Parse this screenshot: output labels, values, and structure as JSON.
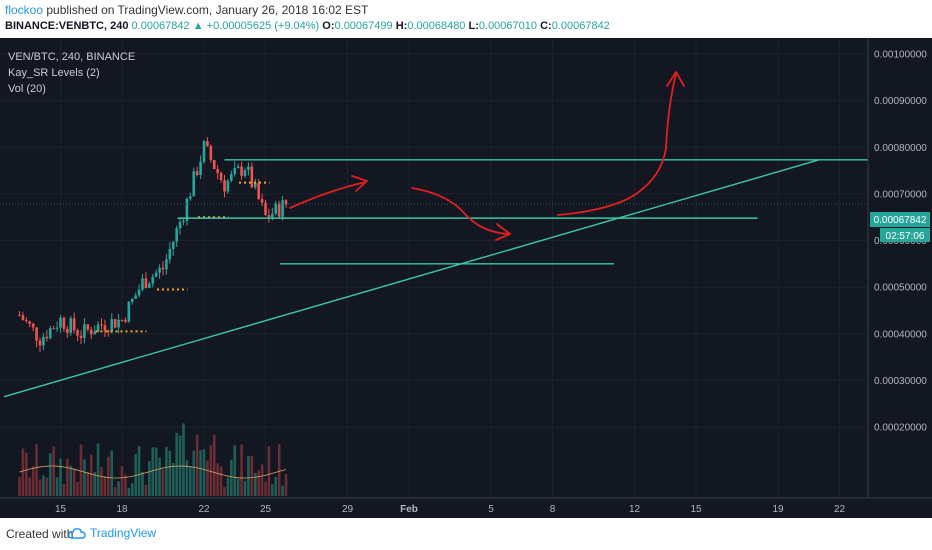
{
  "header": {
    "publisher": "flockoo",
    "published_text": "published on TradingView.com, January 26, 2018 16:02 EST",
    "symbol": "BINANCE:VENBTC, 240",
    "last_price": "0.00067842",
    "change": "+0.00005625 (+9.04%)",
    "open_label": "O:",
    "open": "0.00067499",
    "high_label": "H:",
    "high": "0.00068480",
    "low_label": "L:",
    "low": "0.00067010",
    "close_label": "C:",
    "close": "0.00067842"
  },
  "legend": {
    "series": "VEN/BTC, 240, BINANCE",
    "indicator1": "Kay_SR Levels (2)",
    "indicator2": "Vol (20)"
  },
  "price_tags": {
    "last": "0.00067842",
    "countdown": "02:57:06"
  },
  "footer": {
    "created_with": "Created with",
    "brand": "TradingView"
  },
  "colors": {
    "background": "#131722",
    "up": "#26a69a",
    "down": "#ef5350",
    "lines": "#3cc6a8",
    "annotation": "#e02020",
    "sr_marker": "#f5a623"
  },
  "chart_data": {
    "type": "line",
    "title": "VEN/BTC, 240, BINANCE",
    "ylim": [
      0.00014,
      0.00103
    ],
    "y_ticks": [
      "0.00100000",
      "0.00090000",
      "0.00080000",
      "0.00070000",
      "0.00060000",
      "0.00050000",
      "0.00040000",
      "0.00030000",
      "0.00020000"
    ],
    "x_ticks": [
      "15",
      "18",
      "22",
      "25",
      "29",
      "Feb",
      "5",
      "8",
      "12",
      "15",
      "19",
      "22"
    ],
    "price_path": [
      {
        "date": "2018-01-13",
        "price": 0.00044
      },
      {
        "date": "2018-01-14",
        "price": 0.00039
      },
      {
        "date": "2018-01-15",
        "price": 0.00043
      },
      {
        "date": "2018-01-16",
        "price": 0.0004
      },
      {
        "date": "2018-01-17",
        "price": 0.00042
      },
      {
        "date": "2018-01-18",
        "price": 0.00043
      },
      {
        "date": "2018-01-19",
        "price": 0.00051
      },
      {
        "date": "2018-01-20",
        "price": 0.00054
      },
      {
        "date": "2018-01-21",
        "price": 0.00066
      },
      {
        "date": "2018-01-22",
        "price": 0.0008
      },
      {
        "date": "2018-01-23",
        "price": 0.00072
      },
      {
        "date": "2018-01-24",
        "price": 0.00076
      },
      {
        "date": "2018-01-25",
        "price": 0.00065
      },
      {
        "date": "2018-01-26",
        "price": 0.00067842
      }
    ],
    "horizontal_levels": [
      0.000773,
      0.000648,
      0.00055
    ],
    "trendline": [
      {
        "date": "2018-01-13",
        "price": 0.000265
      },
      {
        "date": "2018-02-21",
        "price": 0.000773
      }
    ]
  }
}
